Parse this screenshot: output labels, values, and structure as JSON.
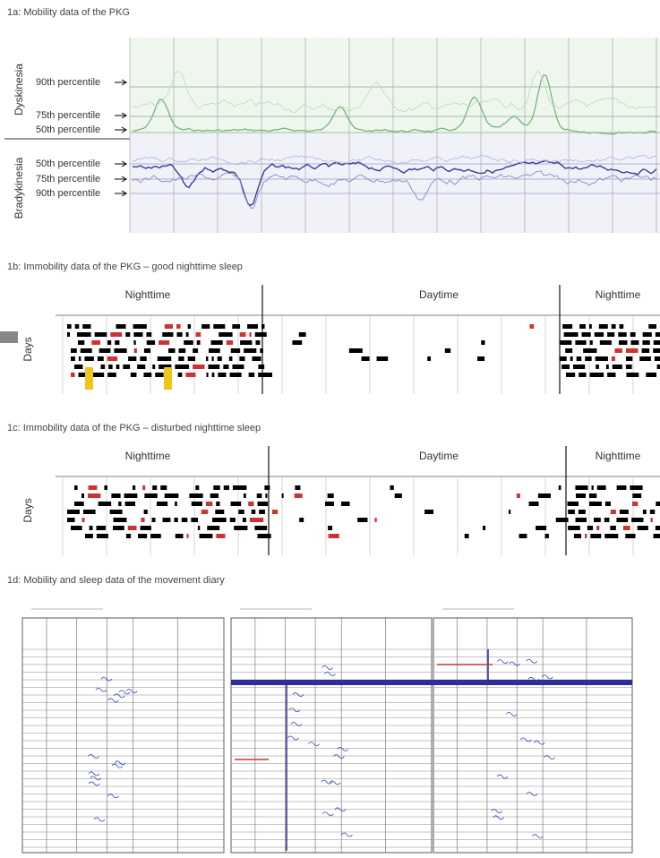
{
  "panel_a": {
    "title": "1a: Mobility data of the PKG",
    "regions": [
      "Dyskinesia",
      "Bradykinesia"
    ],
    "percentiles": [
      "90th percentile",
      "75th percentile",
      "50th percentile",
      "50th percentile",
      "75th percentile",
      "90th percentile"
    ]
  },
  "panel_b": {
    "title": "1b: Immobility data of the PKG – good nighttime sleep",
    "periods": [
      "Nighttime",
      "Daytime",
      "Nighttime"
    ],
    "axis_label": "Days"
  },
  "panel_c": {
    "title": "1c: Immobility data of the PKG – disturbed nighttime sleep",
    "periods": [
      "Nighttime",
      "Daytime",
      "Nighttime"
    ],
    "axis_label": "Days"
  },
  "panel_d": {
    "title": "1d: Mobility and sleep data of the movement diary"
  }
}
